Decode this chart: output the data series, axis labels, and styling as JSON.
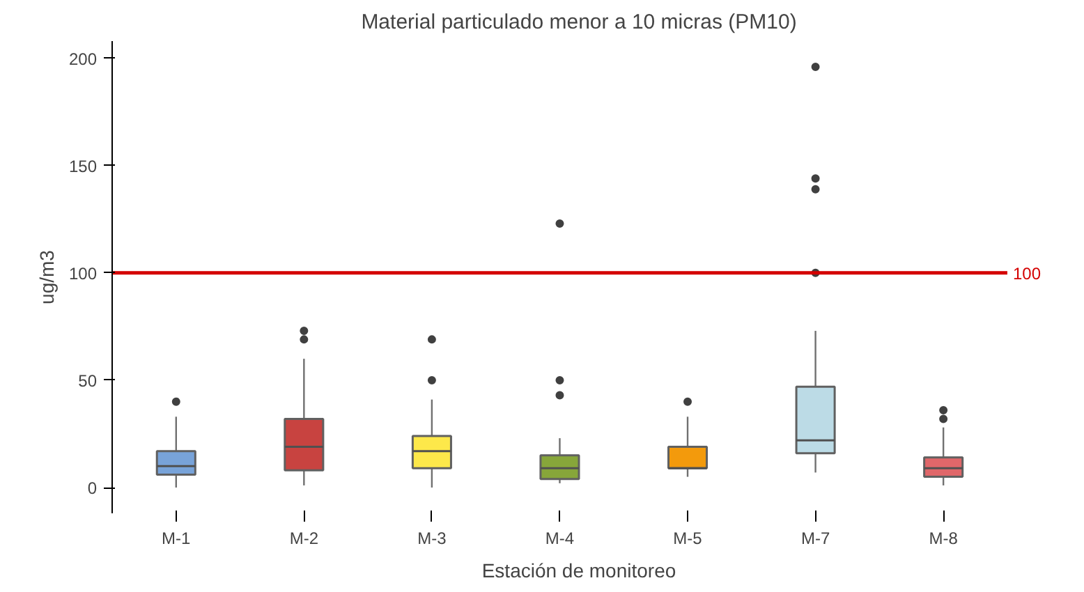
{
  "chart_data": {
    "type": "box",
    "title": "Material particulado menor a 10 micras (PM10)",
    "xlabel": "Estación de monitoreo",
    "ylabel": "ug/m3",
    "categories": [
      "M-1",
      "M-2",
      "M-3",
      "M-4",
      "M-5",
      "M-7",
      "M-8"
    ],
    "colors": [
      "#78a3d9",
      "#c84340",
      "#fde84a",
      "#87a63a",
      "#f39a0c",
      "#bcdbe6",
      "#e0676a"
    ],
    "boxes": [
      {
        "low": 0,
        "q1": 6,
        "median": 10,
        "q3": 17,
        "high": 33,
        "outliers": [
          40
        ]
      },
      {
        "low": 1,
        "q1": 8,
        "median": 19,
        "q3": 32,
        "high": 60,
        "outliers": [
          69,
          73
        ]
      },
      {
        "low": 0,
        "q1": 9,
        "median": 17,
        "q3": 24,
        "high": 41,
        "outliers": [
          50,
          69
        ]
      },
      {
        "low": 2,
        "q1": 4,
        "median": 9,
        "q3": 15,
        "high": 23,
        "outliers": [
          43,
          50,
          123
        ]
      },
      {
        "low": 5,
        "q1": 9,
        "median": 9,
        "q3": 19,
        "high": 33,
        "outliers": [
          40
        ]
      },
      {
        "low": 7,
        "q1": 16,
        "median": 22,
        "q3": 47,
        "high": 73,
        "outliers": [
          100,
          139,
          144,
          196
        ]
      },
      {
        "low": 1,
        "q1": 5,
        "median": 9,
        "q3": 14,
        "high": 28,
        "outliers": [
          32,
          36
        ]
      }
    ],
    "ylim": [
      -12,
      208
    ],
    "yticks": [
      0,
      50,
      100,
      150,
      200
    ],
    "grid": false,
    "ref_lines": [
      {
        "axis": "y",
        "value": 100,
        "label": "100",
        "color": "#d40000"
      }
    ]
  }
}
